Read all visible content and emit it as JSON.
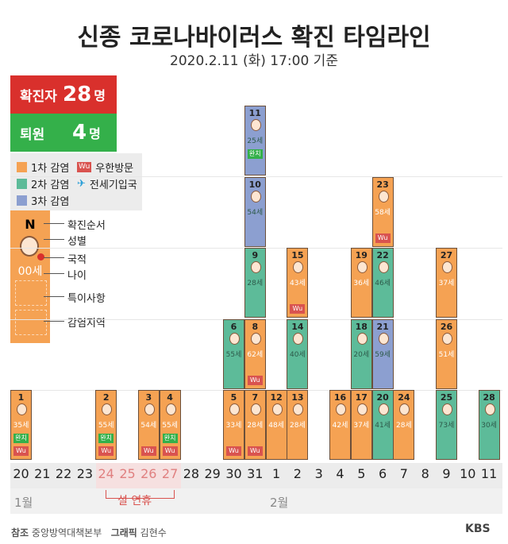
{
  "title": "신종 코로나바이러스 확진 타임라인",
  "subtitle": "2020.2.11 (화) 17:00 기준",
  "stats": {
    "confirmed_label": "확진자",
    "confirmed_value": "28",
    "confirmed_unit": "명",
    "released_label": "퇴원",
    "released_value": "4",
    "released_unit": "명"
  },
  "legend": {
    "first": "1차 감염",
    "second": "2차 감염",
    "third": "3차 감염",
    "wuhan": "우한방문",
    "charter": "전세기입국",
    "wu_tag": "Wu"
  },
  "key": {
    "n": "N",
    "age": "00세",
    "labels": [
      "확진순서",
      "성별",
      "국적",
      "나이",
      "특이사항",
      "감염지역"
    ]
  },
  "days": [
    "20",
    "21",
    "22",
    "23",
    "24",
    "25",
    "26",
    "27",
    "28",
    "29",
    "30",
    "31",
    "1",
    "2",
    "3",
    "4",
    "5",
    "6",
    "7",
    "8",
    "9",
    "10",
    "11"
  ],
  "months": {
    "jan": "1월",
    "feb": "2월"
  },
  "holiday": "설 연휴",
  "cases": [
    {
      "n": "1",
      "age": "35세",
      "type": "1",
      "col": 0,
      "row": 0,
      "tag": "완치",
      "wu": "Wu"
    },
    {
      "n": "2",
      "age": "55세",
      "type": "1",
      "col": 4,
      "row": 0,
      "tag": "완치",
      "wu": "Wu"
    },
    {
      "n": "3",
      "age": "54세",
      "type": "1",
      "col": 6,
      "row": 0,
      "tag": "",
      "wu": "Wu"
    },
    {
      "n": "4",
      "age": "55세",
      "type": "1",
      "col": 7,
      "row": 0,
      "tag": "완치",
      "wu": "Wu"
    },
    {
      "n": "5",
      "age": "33세",
      "type": "1",
      "col": 10,
      "row": 0,
      "tag": "",
      "wu": "Wu"
    },
    {
      "n": "6",
      "age": "55세",
      "type": "2",
      "col": 10,
      "row": 1,
      "tag": "",
      "wu": ""
    },
    {
      "n": "7",
      "age": "28세",
      "type": "1",
      "col": 11,
      "row": 0,
      "tag": "",
      "wu": "Wu"
    },
    {
      "n": "8",
      "age": "62세",
      "type": "1",
      "col": 11,
      "row": 1,
      "tag": "",
      "wu": "Wu"
    },
    {
      "n": "9",
      "age": "28세",
      "type": "2",
      "col": 11,
      "row": 2,
      "tag": "",
      "wu": ""
    },
    {
      "n": "10",
      "age": "54세",
      "type": "3",
      "col": 11,
      "row": 3,
      "tag": "",
      "wu": ""
    },
    {
      "n": "11",
      "age": "25세",
      "type": "3",
      "col": 11,
      "row": 4,
      "tag": "완치",
      "wu": ""
    },
    {
      "n": "12",
      "age": "48세",
      "type": "1",
      "col": 12,
      "row": 0,
      "tag": "",
      "wu": ""
    },
    {
      "n": "13",
      "age": "28세",
      "type": "1",
      "col": 13,
      "row": 0,
      "tag": "",
      "wu": ""
    },
    {
      "n": "14",
      "age": "40세",
      "type": "2",
      "col": 13,
      "row": 1,
      "tag": "",
      "wu": ""
    },
    {
      "n": "15",
      "age": "43세",
      "type": "1",
      "col": 13,
      "row": 2,
      "tag": "",
      "wu": "Wu"
    },
    {
      "n": "16",
      "age": "42세",
      "type": "1",
      "col": 15,
      "row": 0,
      "tag": "",
      "wu": ""
    },
    {
      "n": "17",
      "age": "37세",
      "type": "1",
      "col": 16,
      "row": 0,
      "tag": "",
      "wu": ""
    },
    {
      "n": "18",
      "age": "20세",
      "type": "2",
      "col": 16,
      "row": 1,
      "tag": "",
      "wu": ""
    },
    {
      "n": "19",
      "age": "36세",
      "type": "1",
      "col": 16,
      "row": 2,
      "tag": "",
      "wu": ""
    },
    {
      "n": "20",
      "age": "41세",
      "type": "2",
      "col": 17,
      "row": 0,
      "tag": "",
      "wu": ""
    },
    {
      "n": "21",
      "age": "59세",
      "type": "3",
      "col": 17,
      "row": 1,
      "tag": "",
      "wu": ""
    },
    {
      "n": "22",
      "age": "46세",
      "type": "2",
      "col": 17,
      "row": 2,
      "tag": "",
      "wu": ""
    },
    {
      "n": "23",
      "age": "58세",
      "type": "1",
      "col": 17,
      "row": 3,
      "tag": "",
      "wu": "Wu"
    },
    {
      "n": "24",
      "age": "28세",
      "type": "1",
      "col": 18,
      "row": 0,
      "tag": "",
      "wu": ""
    },
    {
      "n": "25",
      "age": "73세",
      "type": "2",
      "col": 20,
      "row": 0,
      "tag": "",
      "wu": ""
    },
    {
      "n": "26",
      "age": "51세",
      "type": "1",
      "col": 20,
      "row": 1,
      "tag": "",
      "wu": ""
    },
    {
      "n": "27",
      "age": "37세",
      "type": "1",
      "col": 20,
      "row": 2,
      "tag": "",
      "wu": ""
    },
    {
      "n": "28",
      "age": "30세",
      "type": "2",
      "col": 22,
      "row": 0,
      "tag": "",
      "wu": ""
    }
  ],
  "colors": {
    "1": "#f5a253",
    "2": "#5dbb99",
    "3": "#8c9fd0",
    "red": "#d9302c",
    "green": "#34b04a"
  },
  "footer": {
    "source_label": "참조",
    "source": "중앙방역대책본부",
    "graphic_label": "그래픽",
    "graphic": "김현수",
    "brand": "KBS"
  }
}
